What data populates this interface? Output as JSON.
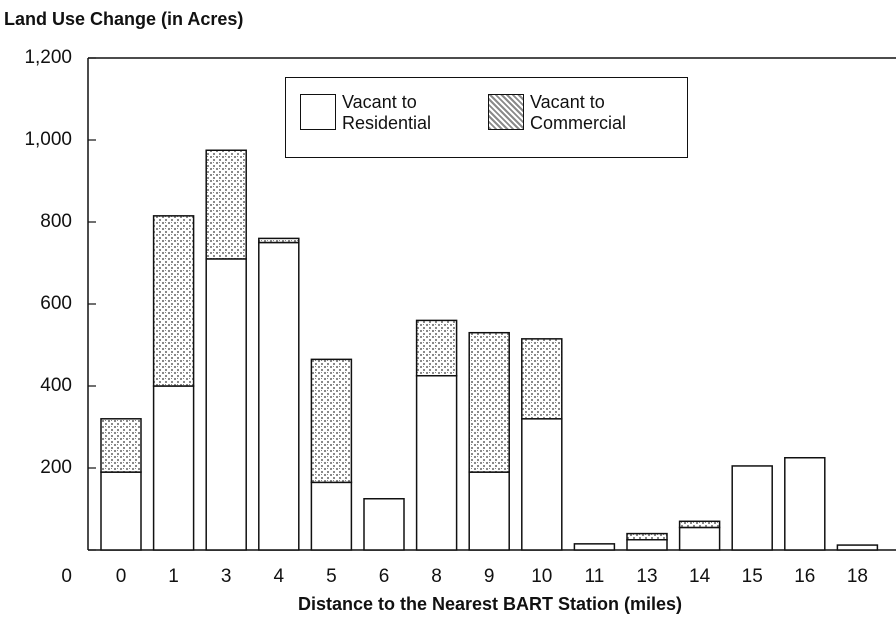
{
  "chart_data": {
    "type": "stacked_bar",
    "title": "Land Use Change (in Acres)",
    "x_label": "Distance to the Nearest BART Station (miles)",
    "categories": [
      "0",
      "1",
      "3",
      "4",
      "5",
      "6",
      "8",
      "9",
      "10",
      "11",
      "13",
      "14",
      "15",
      "16",
      "18"
    ],
    "series": [
      {
        "name": "Vacant to Residential",
        "color": "#ffffff",
        "values": [
          190,
          400,
          710,
          750,
          165,
          125,
          425,
          190,
          320,
          15,
          25,
          55,
          205,
          225,
          12
        ]
      },
      {
        "name": "Vacant to Commercial",
        "color": "#8a8a8a",
        "values": [
          130,
          415,
          265,
          10,
          300,
          0,
          135,
          340,
          195,
          0,
          15,
          15,
          0,
          0,
          0
        ]
      }
    ],
    "ylim": [
      0,
      1200
    ],
    "yticks": [
      0,
      200,
      400,
      600,
      800,
      {
        "value": 1000,
        "label": "1,000"
      },
      {
        "value": 1200,
        "label": "1,200"
      }
    ],
    "grid": false,
    "legend": "top"
  }
}
